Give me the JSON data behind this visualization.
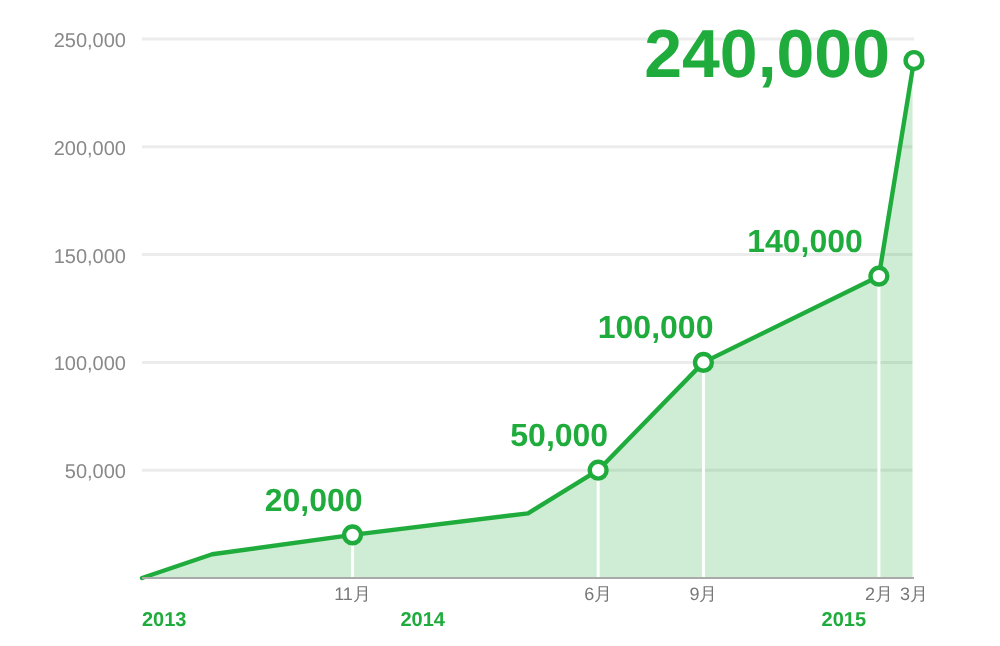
{
  "chart_data": {
    "type": "area",
    "x": [
      "2013-05",
      "2013-07",
      "2013-11",
      "2014-04",
      "2014-06",
      "2014-09",
      "2015-02",
      "2015-03"
    ],
    "series": [
      {
        "color": "#1fac3c",
        "values": [
          0,
          11000,
          20000,
          30000,
          50000,
          100000,
          140000,
          240000
        ],
        "value_labels": [
          null,
          null,
          "20,000",
          null,
          "50,000",
          "100,000",
          "140,000",
          "240,000"
        ]
      }
    ],
    "xlim": [
      "2013-05",
      "2015-03"
    ],
    "xticks": [
      {
        "value": "2013-11",
        "label": "11月"
      },
      {
        "value": "2014-06",
        "label": "6月"
      },
      {
        "value": "2014-09",
        "label": "9月"
      },
      {
        "value": "2015-02",
        "label": "2月"
      },
      {
        "value": "2015-03",
        "label": "3月"
      }
    ],
    "ylim": [
      0,
      250000
    ],
    "yticks": [
      {
        "value": 50000,
        "label": "50,000"
      },
      {
        "value": 100000,
        "label": "100,000"
      },
      {
        "value": 150000,
        "label": "150,000"
      },
      {
        "value": 200000,
        "label": "200,000"
      },
      {
        "value": 250000,
        "label": "250,000"
      }
    ],
    "annotations": [
      "2013",
      "2014",
      "2015"
    ],
    "grid": true,
    "marker": "circle"
  }
}
